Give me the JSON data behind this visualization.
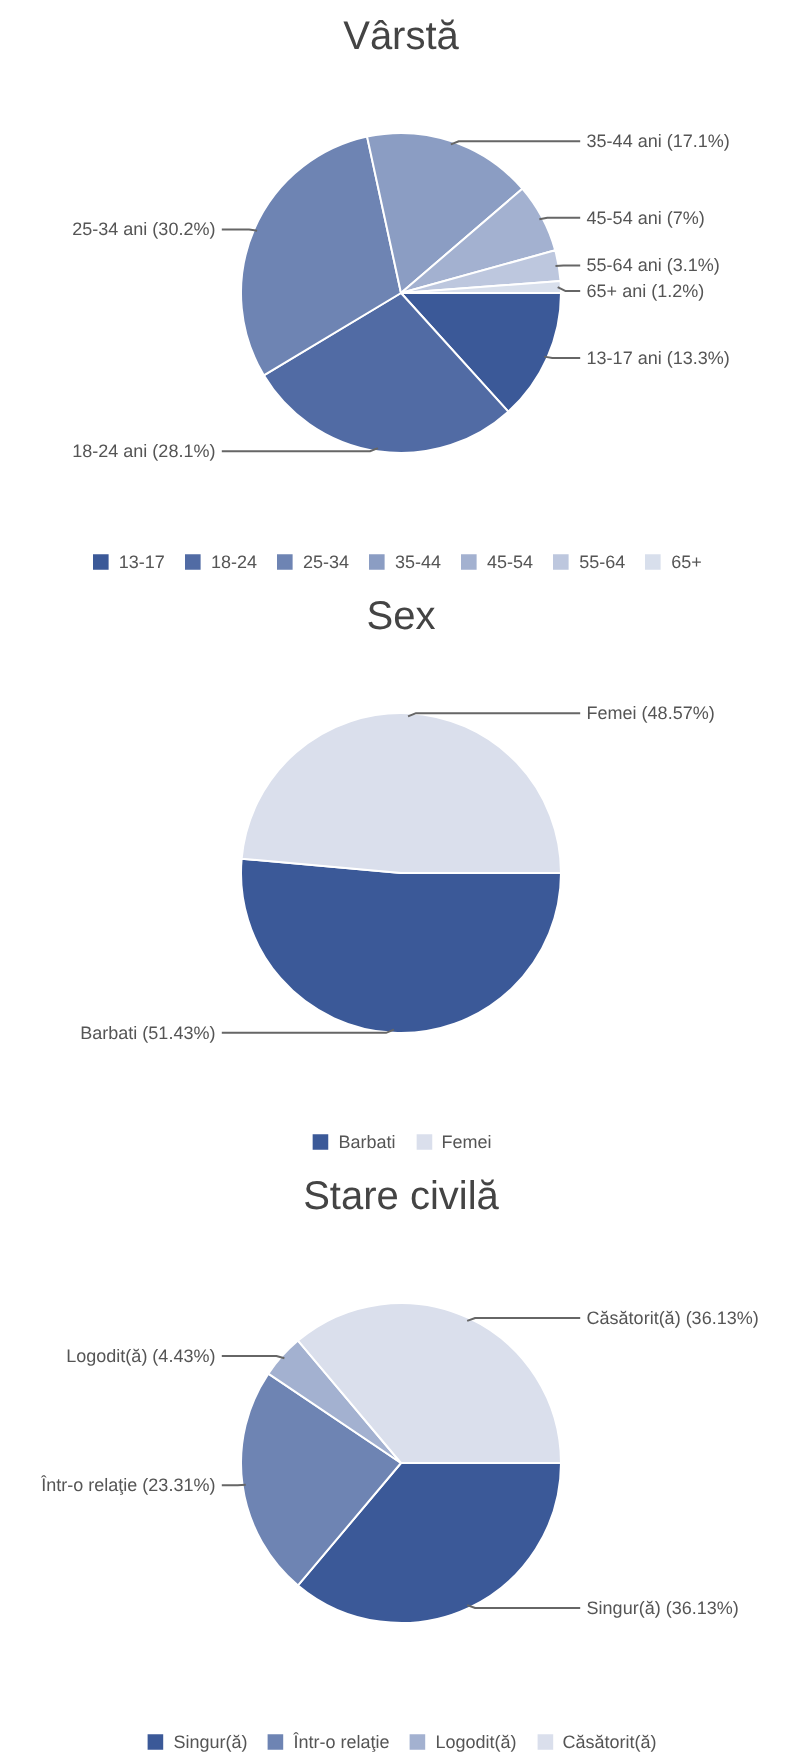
{
  "chart_data": [
    {
      "type": "pie",
      "title": "Vârstă",
      "categories": [
        "13-17",
        "18-24",
        "25-34",
        "35-44",
        "45-54",
        "55-64",
        "65+"
      ],
      "values": [
        13.3,
        28.1,
        30.2,
        17.1,
        7,
        3.1,
        1.2
      ],
      "colors": [
        "#3b5998",
        "#516ba4",
        "#6e84b3",
        "#8b9dc3",
        "#a3b1d0",
        "#bdc7de",
        "#d8dfec"
      ],
      "value_labels": [
        "13-17 ani (13.3%)",
        "18-24 ani (28.1%)",
        "25-34 ani (30.2%)",
        "35-44 ani (17.1%)",
        "45-54 ani (7%)",
        "55-64 ani (3.1%)",
        "65+ ani (1.2%)"
      ],
      "legend": "bottom"
    },
    {
      "type": "pie",
      "title": "Sex",
      "categories": [
        "Barbati",
        "Femei"
      ],
      "values": [
        51.43,
        48.57
      ],
      "colors": [
        "#3b5998",
        "#dadfec"
      ],
      "value_labels": [
        "Barbati (51.43%)",
        "Femei (48.57%)"
      ],
      "legend": "bottom"
    },
    {
      "type": "pie",
      "title": "Stare civilă",
      "categories": [
        "Singur(ă)",
        "Într-o relaţie",
        "Logodit(ă)",
        "Căsătorit(ă)"
      ],
      "values": [
        36.13,
        23.31,
        4.43,
        36.13
      ],
      "colors": [
        "#3b5998",
        "#6e84b3",
        "#a3b1d0",
        "#dadfec"
      ],
      "value_labels": [
        "Singur(ă) (36.13%)",
        "Într-o relaţie (23.31%)",
        "Logodit(ă) (4.43%)",
        "Căsătorit(ă) (36.13%)"
      ],
      "legend": "bottom"
    }
  ]
}
